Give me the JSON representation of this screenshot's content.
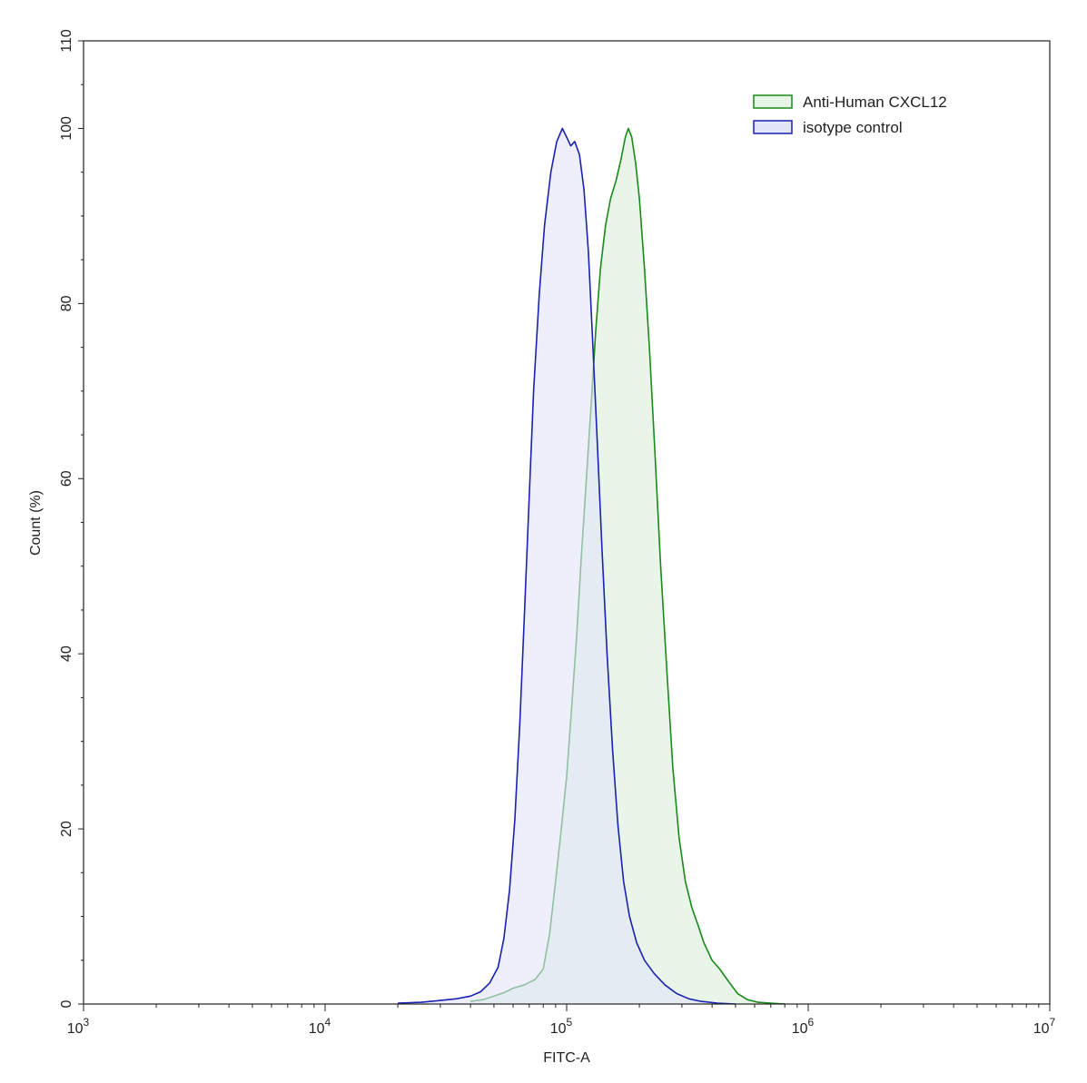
{
  "chart_data": {
    "type": "area",
    "xlabel": "FITC-A",
    "ylabel": "Count  (%)",
    "xscale": "log",
    "xlim": [
      1000,
      10000000
    ],
    "ylim": [
      0,
      110
    ],
    "x_ticks": [
      {
        "value": 1000,
        "base": "10",
        "exp": "3"
      },
      {
        "value": 10000,
        "base": "10",
        "exp": "4"
      },
      {
        "value": 100000,
        "base": "10",
        "exp": "5"
      },
      {
        "value": 1000000,
        "base": "10",
        "exp": "6"
      },
      {
        "value": 10000000,
        "base": "10",
        "exp": "7"
      }
    ],
    "y_ticks": [
      0,
      20,
      40,
      60,
      80,
      100,
      110
    ],
    "legend_position": "top-right",
    "grid": false,
    "series": [
      {
        "name": "Anti-Human CXCL12",
        "stroke": "#1a8a1a",
        "fill": "#e6f4e6",
        "points": [
          [
            40000,
            0.3
          ],
          [
            45000,
            0.5
          ],
          [
            50000,
            0.9
          ],
          [
            55000,
            1.3
          ],
          [
            60000,
            1.8
          ],
          [
            67000,
            2.2
          ],
          [
            74000,
            2.8
          ],
          [
            80000,
            4.0
          ],
          [
            85000,
            8.0
          ],
          [
            90000,
            14.0
          ],
          [
            95000,
            20.0
          ],
          [
            100000,
            26.0
          ],
          [
            105000,
            34.0
          ],
          [
            110000,
            42.0
          ],
          [
            115000,
            51.0
          ],
          [
            120000,
            59.0
          ],
          [
            126000,
            68.0
          ],
          [
            132000,
            77.0
          ],
          [
            138000,
            84.0
          ],
          [
            145000,
            89.0
          ],
          [
            152000,
            92.0
          ],
          [
            160000,
            94.0
          ],
          [
            168000,
            96.5
          ],
          [
            175000,
            99.0
          ],
          [
            180000,
            100.0
          ],
          [
            186000,
            99.0
          ],
          [
            193000,
            96.0
          ],
          [
            200000,
            92.0
          ],
          [
            210000,
            84.0
          ],
          [
            220000,
            75.0
          ],
          [
            232000,
            63.0
          ],
          [
            245000,
            50.0
          ],
          [
            260000,
            38.0
          ],
          [
            275000,
            27.0
          ],
          [
            292000,
            19.0
          ],
          [
            310000,
            14.0
          ],
          [
            330000,
            11.0
          ],
          [
            350000,
            9.0
          ],
          [
            370000,
            7.0
          ],
          [
            400000,
            5.0
          ],
          [
            430000,
            4.0
          ],
          [
            470000,
            2.5
          ],
          [
            510000,
            1.2
          ],
          [
            560000,
            0.5
          ],
          [
            620000,
            0.2
          ],
          [
            700000,
            0.1
          ],
          [
            800000,
            0.0
          ]
        ]
      },
      {
        "name": "isotype control",
        "stroke": "#1a22b0",
        "fill": "#e2e4f8",
        "points": [
          [
            20000,
            0.1
          ],
          [
            25000,
            0.2
          ],
          [
            30000,
            0.4
          ],
          [
            35000,
            0.6
          ],
          [
            40000,
            0.9
          ],
          [
            44000,
            1.4
          ],
          [
            48000,
            2.4
          ],
          [
            52000,
            4.2
          ],
          [
            55000,
            7.5
          ],
          [
            58000,
            13.0
          ],
          [
            61000,
            21.0
          ],
          [
            64000,
            32.0
          ],
          [
            67000,
            45.0
          ],
          [
            70000,
            58.0
          ],
          [
            73000,
            70.0
          ],
          [
            77000,
            81.0
          ],
          [
            81000,
            89.0
          ],
          [
            86000,
            95.0
          ],
          [
            91000,
            98.5
          ],
          [
            96000,
            100.0
          ],
          [
            100000,
            99.0
          ],
          [
            104000,
            98.0
          ],
          [
            108000,
            98.5
          ],
          [
            113000,
            97.0
          ],
          [
            118000,
            93.0
          ],
          [
            123000,
            86.0
          ],
          [
            128000,
            76.0
          ],
          [
            134000,
            64.0
          ],
          [
            140000,
            52.0
          ],
          [
            147000,
            40.0
          ],
          [
            155000,
            29.0
          ],
          [
            163000,
            20.5
          ],
          [
            172000,
            14.0
          ],
          [
            182000,
            10.0
          ],
          [
            195000,
            7.0
          ],
          [
            210000,
            5.0
          ],
          [
            230000,
            3.5
          ],
          [
            255000,
            2.2
          ],
          [
            285000,
            1.2
          ],
          [
            320000,
            0.6
          ],
          [
            360000,
            0.3
          ],
          [
            420000,
            0.1
          ],
          [
            500000,
            0.0
          ]
        ]
      }
    ]
  }
}
